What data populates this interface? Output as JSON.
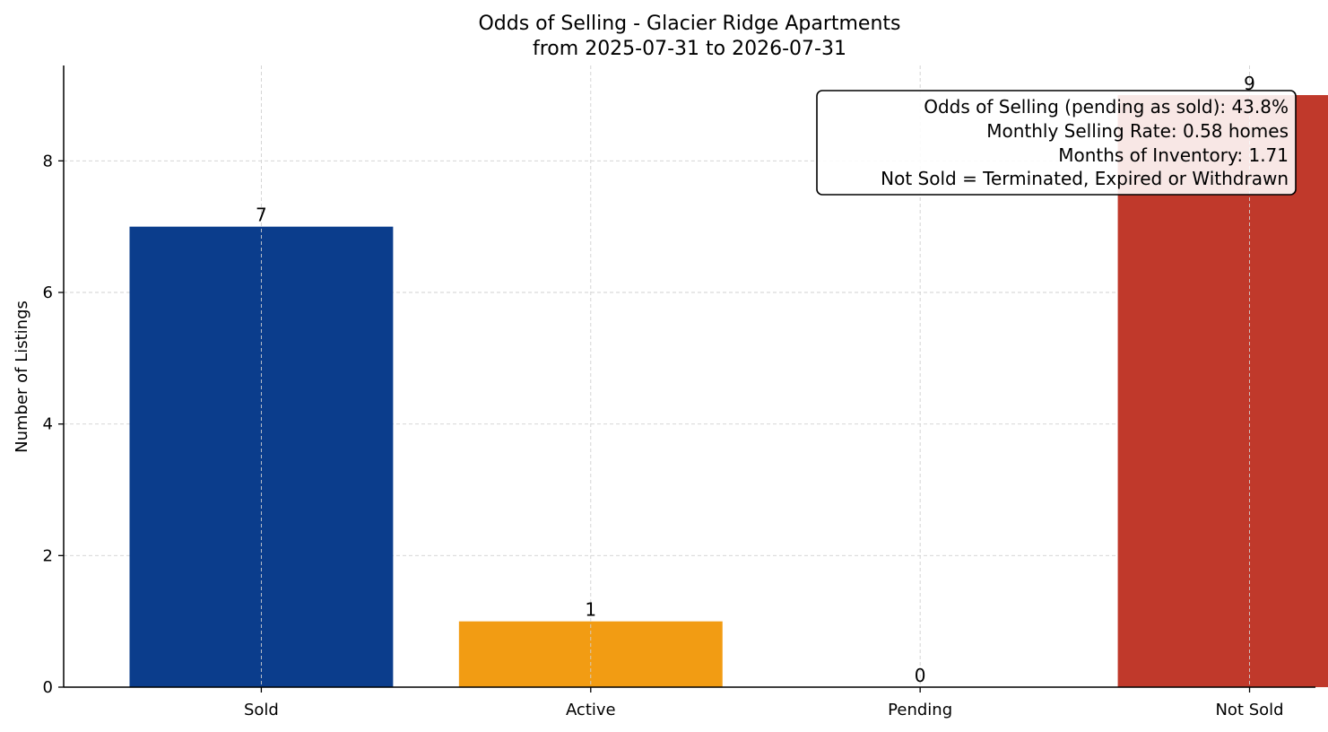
{
  "chart_data": {
    "type": "bar",
    "title": "Odds of Selling - Glacier Ridge Apartments",
    "subtitle": "from 2025-07-31 to 2026-07-31",
    "xlabel": "",
    "ylabel": "Number of Listings",
    "categories": [
      "Sold",
      "Active",
      "Pending",
      "Not Sold"
    ],
    "values": [
      7,
      1,
      0,
      9
    ],
    "data_labels": [
      "7",
      "1",
      "0",
      "9"
    ],
    "colors": [
      "#0b3d8c",
      "#f29c13",
      "#2a9d5c",
      "#c0392b"
    ],
    "ylim": [
      0,
      9.45
    ],
    "yticks": [
      0,
      2,
      4,
      6,
      8
    ],
    "grid": true,
    "info_box": {
      "placement": "top-right",
      "lines": [
        "Odds of Selling (pending as sold): 43.8%",
        "Monthly Selling Rate: 0.58 homes",
        "Months of Inventory: 1.71",
        "Not Sold = Terminated, Expired or Withdrawn"
      ]
    }
  }
}
